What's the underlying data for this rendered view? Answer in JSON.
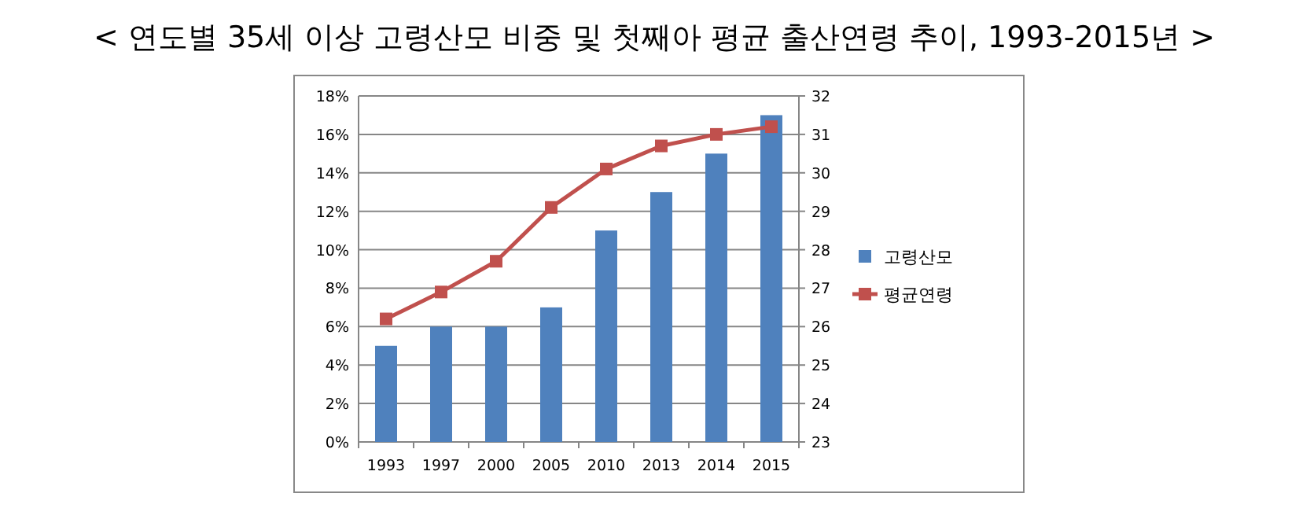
{
  "chart_data": {
    "type": "bar",
    "title": "< 연도별 35세 이상 고령산모 비중 및 첫째아 평균 출산연령 추이, 1993-2015년 >",
    "categories": [
      "1993",
      "1997",
      "2000",
      "2005",
      "2010",
      "2013",
      "2014",
      "2015"
    ],
    "series": [
      {
        "name": "고령산모",
        "color": "#4f81bd",
        "values": [
          5,
          6,
          6,
          7,
          11,
          13,
          15,
          17
        ]
      },
      {
        "name": "평균연령",
        "type": "line",
        "axis": "y2",
        "color": "#c0504d",
        "marker": "square",
        "values": [
          26.2,
          26.9,
          27.7,
          29.1,
          30.1,
          30.7,
          31.0,
          31.2
        ]
      }
    ],
    "ylim": [
      0,
      18
    ],
    "yticks": [
      {
        "value": 0,
        "label": "0%"
      },
      {
        "value": 2,
        "label": "2%"
      },
      {
        "value": 4,
        "label": "4%"
      },
      {
        "value": 6,
        "label": "6%"
      },
      {
        "value": 8,
        "label": "8%"
      },
      {
        "value": 10,
        "label": "10%"
      },
      {
        "value": 12,
        "label": "12%"
      },
      {
        "value": 14,
        "label": "14%"
      },
      {
        "value": 16,
        "label": "16%"
      },
      {
        "value": 18,
        "label": "18%"
      }
    ],
    "y2lim": [
      23,
      32
    ],
    "y2ticks": [
      23,
      24,
      25,
      26,
      27,
      28,
      29,
      30,
      31,
      32
    ],
    "grid": "y",
    "legend": "right"
  }
}
